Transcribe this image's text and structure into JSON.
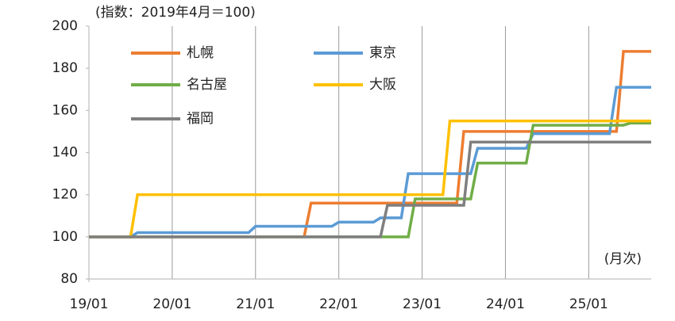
{
  "chart_data": {
    "type": "line",
    "subtitle": "(指数：2019年4月＝100)",
    "annotation": "(月次)",
    "x": [
      "19/01",
      "19/07",
      "19/08",
      "20/12",
      "21/01",
      "21/08",
      "21/09",
      "21/12",
      "22/01",
      "22/06",
      "22/07",
      "22/08",
      "22/10",
      "22/11",
      "22/12",
      "23/04",
      "23/05",
      "23/06",
      "23/07",
      "23/08",
      "23/09",
      "24/04",
      "24/05",
      "25/04",
      "25/05",
      "25/06",
      "25/07",
      "25/10"
    ],
    "series": [
      {
        "name": "札幌",
        "color": "#ed7d31",
        "values": [
          100,
          100,
          100,
          100,
          100,
          100,
          116,
          116,
          116,
          116,
          116,
          116,
          116,
          116,
          116,
          116,
          116,
          116,
          150,
          150,
          150,
          150,
          150,
          150,
          150,
          188,
          188,
          188
        ]
      },
      {
        "name": "東京",
        "color": "#5b9bd5",
        "values": [
          100,
          100,
          102,
          102,
          105,
          105,
          105,
          105,
          107,
          107,
          109,
          109,
          109,
          130,
          130,
          130,
          130,
          130,
          130,
          130,
          142,
          142,
          149,
          149,
          171,
          171,
          171,
          171
        ]
      },
      {
        "name": "名古屋",
        "color": "#70ad47",
        "values": [
          100,
          100,
          100,
          100,
          100,
          100,
          100,
          100,
          100,
          100,
          100,
          100,
          100,
          100,
          118,
          118,
          118,
          118,
          118,
          118,
          135,
          135,
          153,
          153,
          153,
          153,
          154,
          154
        ]
      },
      {
        "name": "大阪",
        "color": "#ffc000",
        "values": [
          100,
          100,
          120,
          120,
          120,
          120,
          120,
          120,
          120,
          120,
          120,
          120,
          120,
          120,
          120,
          120,
          155,
          155,
          155,
          155,
          155,
          155,
          155,
          155,
          155,
          155,
          155,
          155
        ]
      },
      {
        "name": "福岡",
        "color": "#7f7f7f",
        "values": [
          100,
          100,
          100,
          100,
          100,
          100,
          100,
          100,
          100,
          100,
          100,
          115,
          115,
          115,
          115,
          115,
          115,
          115,
          115,
          145,
          145,
          145,
          145,
          145,
          145,
          145,
          145,
          145
        ]
      }
    ],
    "xlim": [
      "19/01",
      "25/10"
    ],
    "xticks": [
      "19/01",
      "20/01",
      "21/01",
      "22/01",
      "23/01",
      "24/01",
      "25/01"
    ],
    "ylim": [
      80,
      200
    ],
    "yticks": [
      80,
      100,
      120,
      140,
      160,
      180,
      200
    ],
    "grid": true
  }
}
